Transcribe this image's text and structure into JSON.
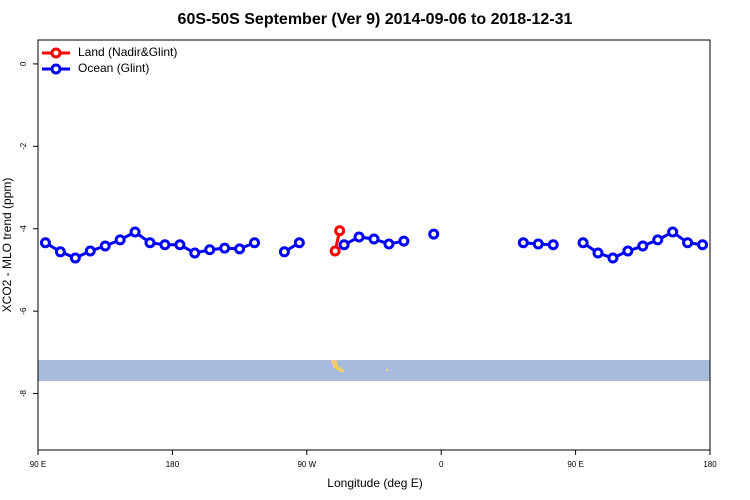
{
  "chart_data": {
    "type": "line",
    "title": "60S-50S September (Ver 9)   2014-09-06 to 2018-12-31",
    "xlabel": "Longitude (deg E)",
    "ylabel": "XCO2 - MLO trend (ppm)",
    "xlim": [
      90,
      540
    ],
    "ylim": [
      -9.37,
      0.58
    ],
    "xticks": [
      {
        "value": 90,
        "label": "90 E"
      },
      180,
      {
        "value": 270,
        "label": "90 W"
      },
      {
        "value": 360,
        "label": "0"
      },
      {
        "value": 450,
        "label": "90 E"
      },
      {
        "value": 540,
        "label": "180"
      }
    ],
    "yticks": [
      0,
      -2,
      -4,
      -6,
      -8
    ],
    "legend": "top-left",
    "series": [
      {
        "name": "Land (Nadir&Glint)",
        "color": "#ff0000",
        "x": [
          289,
          292
        ],
        "values": [
          -4.54,
          -4.05
        ]
      },
      {
        "name": "Ocean (Glint)",
        "color": "#0000ff",
        "x": [
          95,
          105,
          115,
          125,
          135,
          145,
          155,
          165,
          175,
          185,
          195,
          205,
          215,
          225,
          235,
          245,
          255,
          265,
          275,
          285,
          295,
          305,
          315,
          325,
          335,
          345,
          355,
          365,
          375,
          385,
          395,
          405,
          415,
          425,
          435,
          445,
          455,
          465,
          475,
          485,
          495,
          505,
          515,
          525,
          535
        ],
        "values": [
          -4.34,
          -4.56,
          -4.71,
          -4.54,
          -4.42,
          -4.27,
          -4.08,
          -4.34,
          -4.39,
          -4.39,
          -4.59,
          -4.51,
          -4.47,
          -4.49,
          -4.34,
          null,
          -4.56,
          -4.34,
          null,
          null,
          -4.39,
          -4.2,
          -4.25,
          -4.37,
          -4.3,
          null,
          -4.13,
          null,
          null,
          null,
          null,
          null,
          -4.34,
          -4.37,
          -4.39,
          null,
          -4.34,
          -4.59,
          -4.71,
          -4.54,
          -4.42,
          -4.27,
          -4.08,
          -4.34,
          -4.39
        ]
      }
    ]
  }
}
